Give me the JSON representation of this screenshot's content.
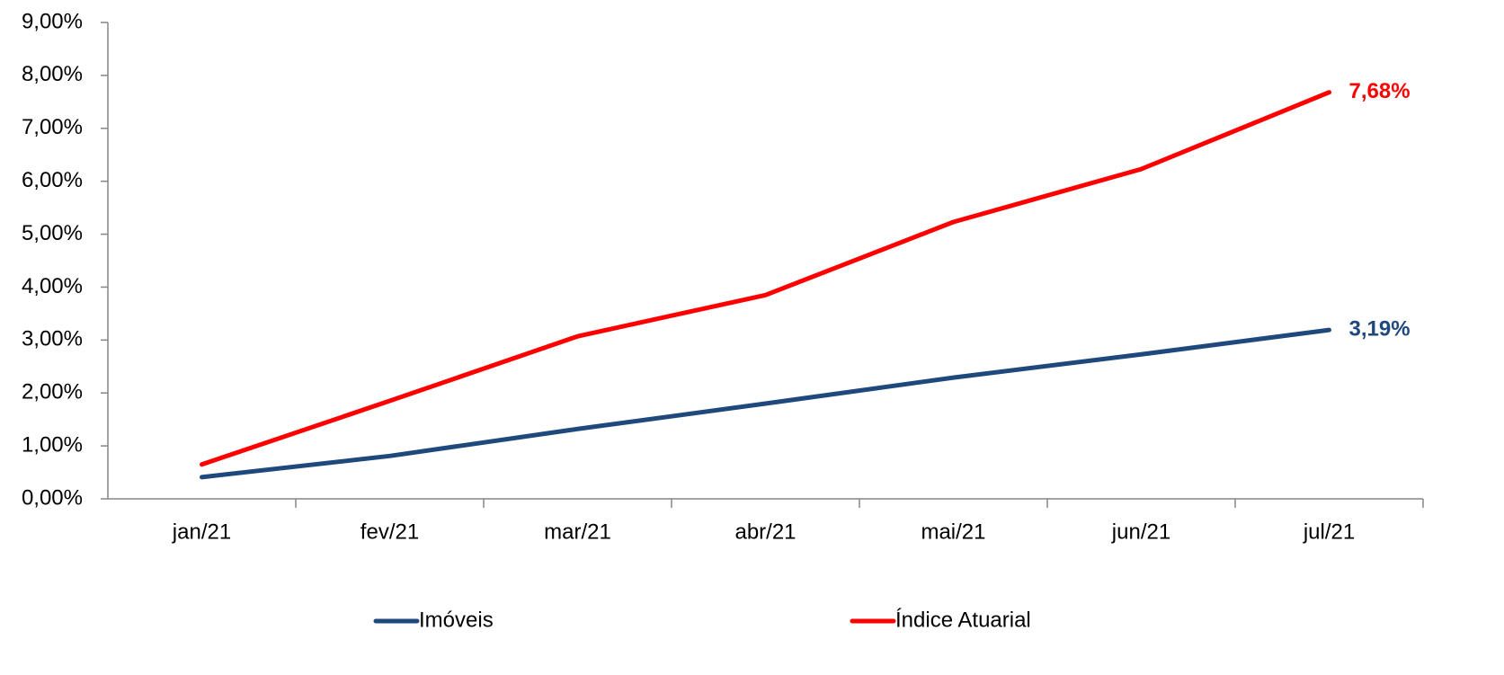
{
  "chart_data": {
    "type": "line",
    "categories": [
      "jan/21",
      "fev/21",
      "mar/21",
      "abr/21",
      "mai/21",
      "jun/21",
      "jul/21"
    ],
    "series": [
      {
        "name": "Imóveis",
        "color": "#1f497d",
        "values": [
          0.41,
          0.81,
          1.32,
          1.8,
          2.29,
          2.73,
          3.19
        ],
        "value_labels": [
          null,
          null,
          null,
          null,
          null,
          null,
          "3,19%"
        ]
      },
      {
        "name": "Índice Atuarial",
        "color": "#ff0000",
        "values": [
          0.65,
          1.85,
          3.07,
          3.85,
          5.23,
          6.23,
          7.68
        ],
        "value_labels": [
          null,
          null,
          null,
          null,
          null,
          null,
          "7,68%"
        ]
      }
    ],
    "ylim": [
      0,
      9
    ],
    "yticks": [
      {
        "value": 0,
        "label": "0,00%"
      },
      {
        "value": 1,
        "label": "1,00%"
      },
      {
        "value": 2,
        "label": "2,00%"
      },
      {
        "value": 3,
        "label": "3,00%"
      },
      {
        "value": 4,
        "label": "4,00%"
      },
      {
        "value": 5,
        "label": "5,00%"
      },
      {
        "value": 6,
        "label": "6,00%"
      },
      {
        "value": 7,
        "label": "7,00%"
      },
      {
        "value": 8,
        "label": "8,00%"
      },
      {
        "value": 9,
        "label": "9,00%"
      }
    ],
    "legend": "bottom"
  }
}
